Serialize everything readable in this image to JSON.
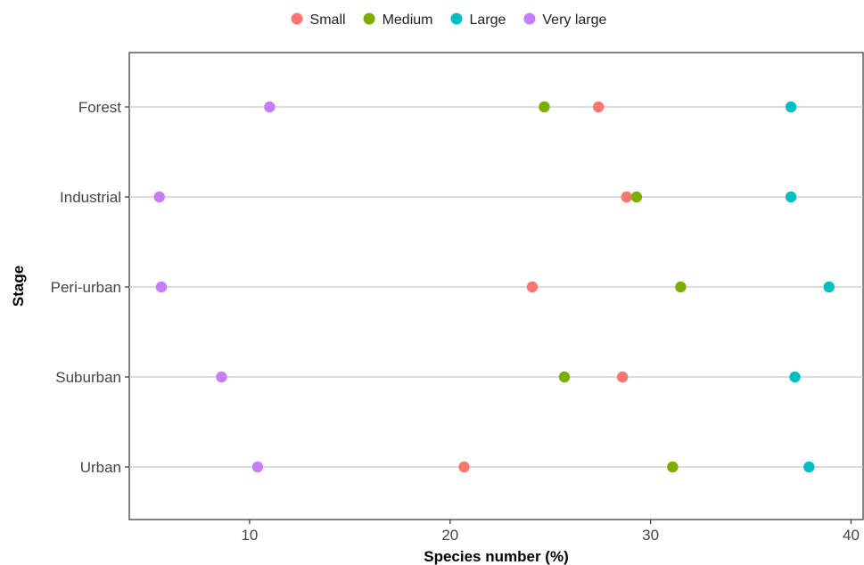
{
  "chart_data": {
    "type": "scatter",
    "xlabel": "Species number (%)",
    "ylabel": "Stage",
    "xlim": [
      4,
      40.6
    ],
    "x_ticks": [
      10,
      20,
      30,
      40
    ],
    "categories": [
      "Forest",
      "Industrial",
      "Peri-urban",
      "Suburban",
      "Urban"
    ],
    "legend_position": "top",
    "grid": "horizontal lines at each stage",
    "series": [
      {
        "name": "Small",
        "color": "#F8766D",
        "values": [
          27.4,
          28.8,
          24.1,
          28.6,
          20.7
        ]
      },
      {
        "name": "Medium",
        "color": "#7CAE00",
        "values": [
          24.7,
          29.3,
          31.5,
          25.7,
          31.1
        ]
      },
      {
        "name": "Large",
        "color": "#00BFC4",
        "values": [
          37.0,
          37.0,
          38.9,
          37.2,
          37.9
        ]
      },
      {
        "name": "Very large",
        "color": "#C77CFF",
        "values": [
          11.0,
          5.5,
          5.6,
          8.6,
          10.4
        ]
      }
    ]
  }
}
